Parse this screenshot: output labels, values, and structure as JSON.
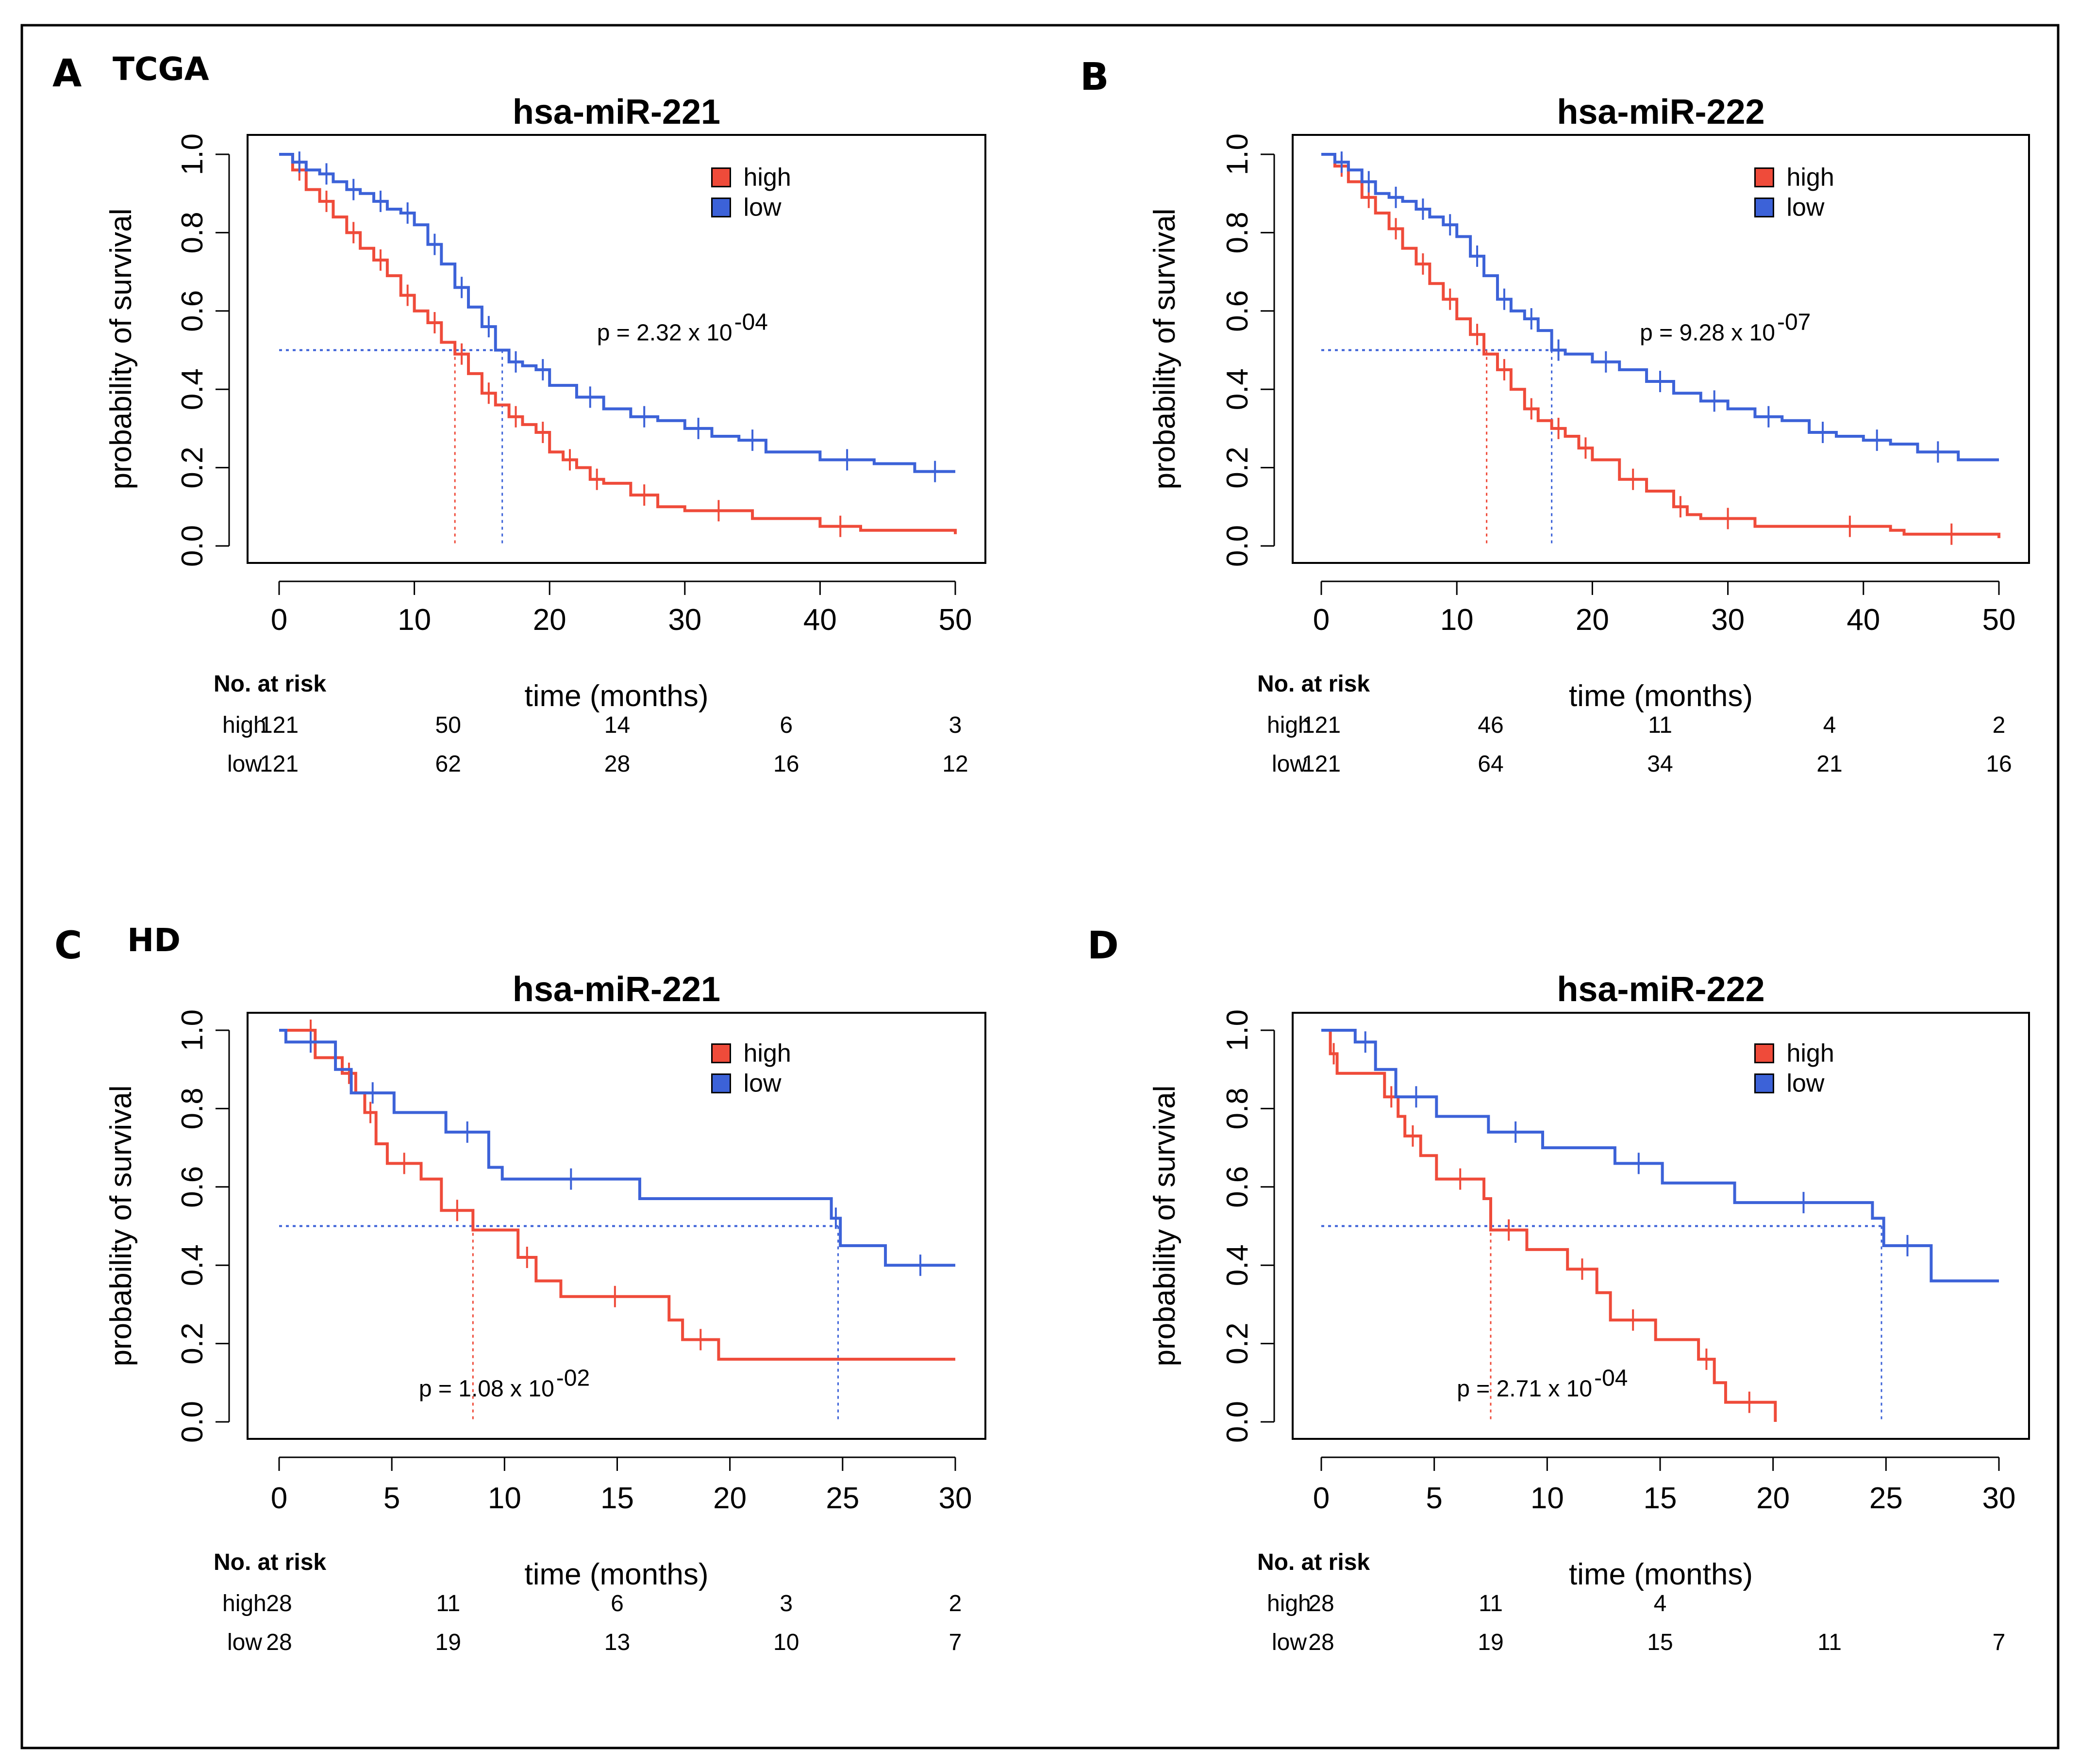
{
  "colors": {
    "high": "#ef4b3a",
    "low": "#3c62d8",
    "axis": "#000000",
    "frame": "#000000"
  },
  "chart_data": [
    {
      "type": "line",
      "panel_label": "A",
      "group_label": "TCGA",
      "title": "hsa-miR-221",
      "xlabel": "time (months)",
      "ylabel": "probability of survival",
      "xlim": [
        0,
        50
      ],
      "ylim": [
        0,
        1
      ],
      "xticks": [
        "0",
        "10",
        "20",
        "30",
        "40",
        "50"
      ],
      "xtick_values": [
        0,
        10,
        20,
        30,
        40,
        50
      ],
      "yticks": [
        "0.0",
        "0.2",
        "0.4",
        "0.6",
        "0.8",
        "1.0"
      ],
      "ytick_values": [
        0,
        0.2,
        0.4,
        0.6,
        0.8,
        1.0
      ],
      "legend": [
        "high",
        "low"
      ],
      "legend_position": "top-right",
      "p_value": {
        "text": "p = 2.32 x 10",
        "exp": "-04",
        "x": 23.5,
        "y": 0.5
      },
      "median_line_y": 0.5,
      "medians": [
        13,
        16.5
      ],
      "series": [
        {
          "name": "high",
          "color_key": "high",
          "x": [
            0,
            1,
            2,
            3,
            4,
            5,
            6,
            7,
            8,
            9,
            10,
            11,
            12,
            13,
            14,
            15,
            16,
            17,
            18,
            19,
            20,
            21,
            22,
            23,
            24,
            26,
            28,
            30,
            35,
            40,
            43,
            50
          ],
          "y": [
            1.0,
            0.96,
            0.91,
            0.88,
            0.84,
            0.8,
            0.76,
            0.73,
            0.69,
            0.64,
            0.6,
            0.57,
            0.52,
            0.49,
            0.44,
            0.39,
            0.36,
            0.33,
            0.31,
            0.29,
            0.24,
            0.22,
            0.2,
            0.17,
            0.16,
            0.13,
            0.1,
            0.09,
            0.07,
            0.05,
            0.04,
            0.03
          ]
        },
        {
          "name": "low",
          "color_key": "low",
          "x": [
            0,
            1,
            2,
            3,
            4,
            5,
            6,
            7,
            8,
            9,
            10,
            11,
            12,
            13,
            14,
            15,
            16,
            17,
            18,
            19,
            20,
            22,
            24,
            26,
            28,
            30,
            32,
            34,
            36,
            40,
            44,
            47,
            50
          ],
          "y": [
            1.0,
            0.98,
            0.96,
            0.95,
            0.93,
            0.91,
            0.9,
            0.88,
            0.86,
            0.85,
            0.82,
            0.77,
            0.72,
            0.66,
            0.61,
            0.56,
            0.5,
            0.47,
            0.46,
            0.45,
            0.41,
            0.38,
            0.35,
            0.33,
            0.32,
            0.3,
            0.28,
            0.27,
            0.24,
            0.22,
            0.21,
            0.19,
            0.19
          ]
        }
      ],
      "risk_table": {
        "title": "No. at risk",
        "rows": [
          {
            "label": "high",
            "values": [
              "121",
              "50",
              "14",
              "6",
              "3"
            ]
          },
          {
            "label": "low",
            "values": [
              "121",
              "62",
              "28",
              "16",
              "12"
            ]
          }
        ]
      }
    },
    {
      "type": "line",
      "panel_label": "B",
      "group_label": "",
      "title": "hsa-miR-222",
      "xlabel": "time (months)",
      "ylabel": "probability of survival",
      "xlim": [
        0,
        50
      ],
      "ylim": [
        0,
        1
      ],
      "xticks": [
        "0",
        "10",
        "20",
        "30",
        "40",
        "50"
      ],
      "xtick_values": [
        0,
        10,
        20,
        30,
        40,
        50
      ],
      "yticks": [
        "0.0",
        "0.2",
        "0.4",
        "0.6",
        "0.8",
        "1.0"
      ],
      "ytick_values": [
        0,
        0.2,
        0.4,
        0.6,
        0.8,
        1.0
      ],
      "legend": [
        "high",
        "low"
      ],
      "legend_position": "top-right",
      "p_value": {
        "text": "p = 9.28 x 10",
        "exp": "-07",
        "x": 23.5,
        "y": 0.5
      },
      "median_line_y": 0.5,
      "medians": [
        12.2,
        17
      ],
      "series": [
        {
          "name": "high",
          "color_key": "high",
          "x": [
            0,
            1,
            2,
            3,
            4,
            5,
            6,
            7,
            8,
            9,
            10,
            11,
            12,
            13,
            14,
            15,
            16,
            17,
            18,
            19,
            20,
            22,
            24,
            26,
            27,
            28,
            32,
            36,
            42,
            43,
            50
          ],
          "y": [
            1.0,
            0.97,
            0.93,
            0.89,
            0.85,
            0.81,
            0.76,
            0.72,
            0.67,
            0.63,
            0.58,
            0.54,
            0.49,
            0.45,
            0.4,
            0.35,
            0.32,
            0.3,
            0.28,
            0.25,
            0.22,
            0.17,
            0.14,
            0.1,
            0.08,
            0.07,
            0.05,
            0.05,
            0.04,
            0.03,
            0.02
          ]
        },
        {
          "name": "low",
          "color_key": "low",
          "x": [
            0,
            1,
            2,
            3,
            4,
            5,
            6,
            7,
            8,
            9,
            10,
            11,
            12,
            13,
            14,
            15,
            16,
            17,
            18,
            20,
            22,
            24,
            26,
            28,
            30,
            32,
            34,
            36,
            38,
            40,
            42,
            44,
            47,
            50
          ],
          "y": [
            1.0,
            0.98,
            0.96,
            0.93,
            0.9,
            0.89,
            0.88,
            0.86,
            0.84,
            0.82,
            0.79,
            0.74,
            0.69,
            0.63,
            0.6,
            0.58,
            0.55,
            0.5,
            0.49,
            0.47,
            0.45,
            0.42,
            0.39,
            0.37,
            0.35,
            0.33,
            0.32,
            0.29,
            0.28,
            0.27,
            0.26,
            0.24,
            0.22,
            0.22
          ]
        }
      ],
      "risk_table": {
        "title": "No. at risk",
        "rows": [
          {
            "label": "high",
            "values": [
              "121",
              "46",
              "11",
              "4",
              "2"
            ]
          },
          {
            "label": "low",
            "values": [
              "121",
              "64",
              "34",
              "21",
              "16"
            ]
          }
        ]
      }
    },
    {
      "type": "line",
      "panel_label": "C",
      "group_label": "HD",
      "title": "hsa-miR-221",
      "xlabel": "time (months)",
      "ylabel": "probability of survival",
      "xlim": [
        0,
        30
      ],
      "ylim": [
        0,
        1
      ],
      "xticks": [
        "0",
        "5",
        "10",
        "15",
        "20",
        "25",
        "30"
      ],
      "xtick_values": [
        0,
        5,
        10,
        15,
        20,
        25,
        30
      ],
      "yticks": [
        "0.0",
        "0.2",
        "0.4",
        "0.6",
        "0.8",
        "1.0"
      ],
      "ytick_values": [
        0,
        0.2,
        0.4,
        0.6,
        0.8,
        1.0
      ],
      "legend": [
        "high",
        "low"
      ],
      "legend_position": "top-right",
      "p_value": {
        "text": "p = 1.08 x 10",
        "exp": "-02",
        "x": 6.2,
        "y": 0.04
      },
      "median_line_y": 0.5,
      "medians": [
        8.6,
        24.8
      ],
      "series": [
        {
          "name": "high",
          "color_key": "high",
          "x": [
            0,
            1.2,
            1.6,
            2.8,
            3.4,
            3.8,
            4.3,
            4.8,
            6.3,
            7.2,
            8.6,
            10.6,
            11.4,
            12.5,
            17.3,
            17.9,
            19.5,
            30
          ],
          "y": [
            1.0,
            1.0,
            0.93,
            0.89,
            0.84,
            0.79,
            0.71,
            0.66,
            0.62,
            0.54,
            0.49,
            0.42,
            0.36,
            0.32,
            0.26,
            0.21,
            0.16,
            0.16
          ]
        },
        {
          "name": "low",
          "color_key": "low",
          "x": [
            0,
            0.3,
            2.5,
            3.2,
            5.1,
            7.4,
            9.3,
            9.9,
            16,
            24.5,
            24.9,
            26.9,
            30
          ],
          "y": [
            1.0,
            0.97,
            0.9,
            0.84,
            0.79,
            0.74,
            0.65,
            0.62,
            0.57,
            0.52,
            0.45,
            0.4,
            0.4
          ]
        }
      ],
      "risk_table": {
        "title": "No. at risk",
        "rows": [
          {
            "label": "high",
            "values": [
              "28",
              "11",
              "6",
              "3",
              "2"
            ]
          },
          {
            "label": "low",
            "values": [
              "28",
              "19",
              "13",
              "10",
              "7"
            ]
          }
        ]
      }
    },
    {
      "type": "line",
      "panel_label": "D",
      "group_label": "",
      "title": "hsa-miR-222",
      "xlabel": "time (months)",
      "ylabel": "probability of survival",
      "xlim": [
        0,
        30
      ],
      "ylim": [
        0,
        1
      ],
      "xticks": [
        "0",
        "5",
        "10",
        "15",
        "20",
        "25",
        "30"
      ],
      "xtick_values": [
        0,
        5,
        10,
        15,
        20,
        25,
        30
      ],
      "yticks": [
        "0.0",
        "0.2",
        "0.4",
        "0.6",
        "0.8",
        "1.0"
      ],
      "yticks_values_note": "",
      "ytick_values": [
        0,
        0.2,
        0.4,
        0.6,
        0.8,
        1.0
      ],
      "legend": [
        "high",
        "low"
      ],
      "legend_position": "top-right",
      "p_value": {
        "text": "p = 2.71 x 10",
        "exp": "-04",
        "x": 6.0,
        "y": 0.04
      },
      "median_line_y": 0.5,
      "medians": [
        7.5,
        24.8
      ],
      "series": [
        {
          "name": "high",
          "color_key": "high",
          "x": [
            0,
            0.4,
            0.7,
            2.8,
            3.4,
            3.7,
            4.4,
            5.1,
            7.2,
            7.5,
            9.1,
            10.9,
            12.2,
            12.8,
            14.8,
            16.7,
            17.4,
            17.9,
            20,
            20.1
          ],
          "y": [
            1.0,
            0.94,
            0.89,
            0.83,
            0.78,
            0.73,
            0.68,
            0.62,
            0.57,
            0.49,
            0.44,
            0.39,
            0.33,
            0.26,
            0.21,
            0.16,
            0.1,
            0.05,
            0.05,
            0.0
          ]
        },
        {
          "name": "low",
          "color_key": "low",
          "x": [
            0,
            1.5,
            2.4,
            3.3,
            5.1,
            7.4,
            9.8,
            13,
            15.1,
            18.3,
            24.4,
            24.9,
            27,
            30
          ],
          "y": [
            1.0,
            0.97,
            0.9,
            0.83,
            0.78,
            0.74,
            0.7,
            0.66,
            0.61,
            0.56,
            0.52,
            0.45,
            0.36,
            0.36
          ]
        }
      ],
      "risk_table": {
        "title": "No. at risk",
        "rows": [
          {
            "label": "high",
            "values": [
              "28",
              "11",
              "4",
              "",
              ""
            ]
          },
          {
            "label": "low",
            "values": [
              "28",
              "19",
              "15",
              "11",
              "7"
            ]
          }
        ]
      }
    }
  ]
}
